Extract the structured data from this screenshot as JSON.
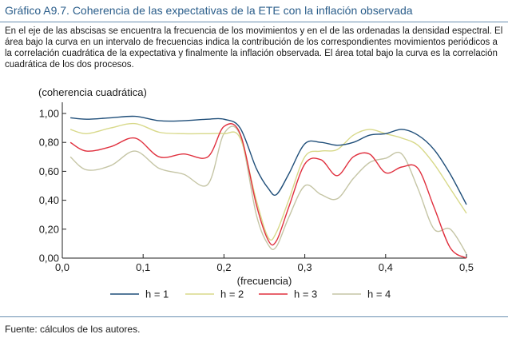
{
  "header": {
    "title": "Gráfico A9.7. Coherencia de las expectativas de la ETE con la inflación observada",
    "description": "En el eje de las abscisas se encuentra la frecuencia de los movimientos y en el de las ordenadas la densidad espectral. El área bajo la curva en un intervalo de frecuencias indica la contribución de los correspondientes movimientos periódicos a la correlación cuadrática de la expectativa y finalmente la inflación observada. El área total bajo la curva es la correlación cuadrática de los dos procesos."
  },
  "footer": {
    "source": "Fuente: cálculos de los autores."
  },
  "chart_data": {
    "type": "line",
    "ylabel": "(coherencia cuadrática)",
    "xlabel": "(frecuencia)",
    "xlim": [
      0,
      0.5
    ],
    "ylim": [
      0,
      1.0
    ],
    "x_ticks": [
      "0,0",
      "0,1",
      "0,2",
      "0,3",
      "0,4",
      "0,5"
    ],
    "x_tick_values": [
      0,
      0.1,
      0.2,
      0.3,
      0.4,
      0.5
    ],
    "y_ticks": [
      "0,00",
      "0,20",
      "0,40",
      "0,60",
      "0,80",
      "1,00"
    ],
    "y_tick_values": [
      0,
      0.2,
      0.4,
      0.6,
      0.8,
      1.0
    ],
    "grid": false,
    "legend": "bottom",
    "x": [
      0.01,
      0.03,
      0.06,
      0.09,
      0.12,
      0.15,
      0.18,
      0.2,
      0.22,
      0.24,
      0.255,
      0.265,
      0.28,
      0.3,
      0.32,
      0.34,
      0.36,
      0.38,
      0.4,
      0.42,
      0.44,
      0.46,
      0.48,
      0.5
    ],
    "series": [
      {
        "name": "h = 1",
        "color": "#1f4e79",
        "values": [
          0.97,
          0.96,
          0.97,
          0.98,
          0.95,
          0.95,
          0.96,
          0.96,
          0.9,
          0.62,
          0.48,
          0.44,
          0.58,
          0.79,
          0.8,
          0.78,
          0.8,
          0.85,
          0.86,
          0.89,
          0.85,
          0.75,
          0.58,
          0.37
        ]
      },
      {
        "name": "h = 2",
        "color": "#d8d98a",
        "values": [
          0.89,
          0.86,
          0.9,
          0.93,
          0.87,
          0.86,
          0.86,
          0.86,
          0.83,
          0.4,
          0.14,
          0.18,
          0.4,
          0.7,
          0.74,
          0.75,
          0.85,
          0.89,
          0.86,
          0.83,
          0.78,
          0.65,
          0.48,
          0.31
        ]
      },
      {
        "name": "h = 3",
        "color": "#e0303e",
        "values": [
          0.8,
          0.74,
          0.77,
          0.83,
          0.7,
          0.72,
          0.7,
          0.91,
          0.86,
          0.37,
          0.12,
          0.12,
          0.35,
          0.65,
          0.68,
          0.57,
          0.7,
          0.72,
          0.59,
          0.63,
          0.62,
          0.35,
          0.07,
          0.0
        ]
      },
      {
        "name": "h = 4",
        "color": "#c5c5a5",
        "values": [
          0.7,
          0.61,
          0.64,
          0.74,
          0.62,
          0.58,
          0.51,
          0.86,
          0.85,
          0.3,
          0.09,
          0.08,
          0.28,
          0.5,
          0.44,
          0.41,
          0.55,
          0.66,
          0.69,
          0.72,
          0.48,
          0.2,
          0.2,
          0.03
        ]
      }
    ]
  }
}
